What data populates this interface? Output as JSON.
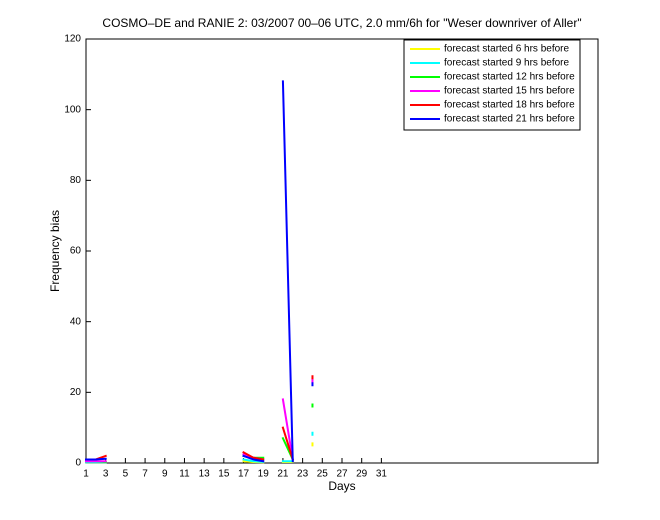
{
  "chart_data": {
    "type": "line",
    "title": "COSMO–DE and RANIE 2: 03/2007 00–06 UTC, 2.0 mm/6h for \"Weser downriver of Aller\"",
    "x_label": "Days",
    "y_label": "Frequency bias",
    "x": [
      1,
      2,
      3,
      4,
      5,
      6,
      7,
      8,
      9,
      10,
      11,
      12,
      13,
      14,
      15,
      16,
      17,
      18,
      19,
      20,
      21,
      22,
      23,
      24
    ],
    "series": [
      {
        "name": "forecast started 6 hrs before",
        "color": "#ffff00",
        "values": [
          0.2,
          0.2,
          0.2,
          null,
          null,
          null,
          null,
          null,
          null,
          null,
          null,
          null,
          null,
          null,
          null,
          null,
          0.5,
          0.3,
          0.2,
          null,
          0.3,
          0.3,
          null,
          5
        ]
      },
      {
        "name": "forecast started 9 hrs before",
        "color": "#00ffff",
        "values": [
          0.2,
          0.2,
          0.2,
          null,
          null,
          null,
          null,
          null,
          null,
          null,
          null,
          null,
          null,
          null,
          null,
          null,
          1,
          0.5,
          0.3,
          null,
          0.5,
          0.5,
          null,
          8
        ]
      },
      {
        "name": "forecast started 12 hrs before",
        "color": "#00ff00",
        "values": [
          0.5,
          0.5,
          0.3,
          null,
          null,
          null,
          null,
          null,
          null,
          null,
          null,
          null,
          null,
          null,
          null,
          null,
          2,
          1.5,
          1.5,
          null,
          7,
          1,
          null,
          16
        ]
      },
      {
        "name": "forecast started 15 hrs before",
        "color": "#ff00ff",
        "values": [
          0.5,
          0.5,
          0.5,
          null,
          null,
          null,
          null,
          null,
          null,
          null,
          null,
          null,
          null,
          null,
          null,
          null,
          2.5,
          1.5,
          1,
          null,
          18,
          1,
          null,
          23
        ]
      },
      {
        "name": "forecast started 18 hrs before",
        "color": "#ff0000",
        "values": [
          1,
          1,
          2,
          null,
          null,
          null,
          null,
          null,
          null,
          null,
          null,
          null,
          null,
          null,
          null,
          null,
          3,
          1.5,
          1,
          null,
          10,
          1,
          null,
          24
        ]
      },
      {
        "name": "forecast started 21 hrs before",
        "color": "#0000ff",
        "values": [
          1,
          1,
          1.2,
          null,
          null,
          null,
          null,
          null,
          null,
          null,
          null,
          null,
          null,
          null,
          null,
          null,
          2,
          1,
          0.5,
          null,
          108,
          0.5,
          null,
          22
        ]
      }
    ],
    "xlim": [
      1,
      53
    ],
    "xticks": [
      1,
      3,
      5,
      7,
      9,
      11,
      13,
      15,
      17,
      19,
      21,
      23,
      25,
      27,
      29,
      31
    ],
    "ylim": [
      0,
      120
    ],
    "yticks": [
      0,
      20,
      40,
      60,
      80,
      100,
      120
    ],
    "legend": "top-right"
  }
}
